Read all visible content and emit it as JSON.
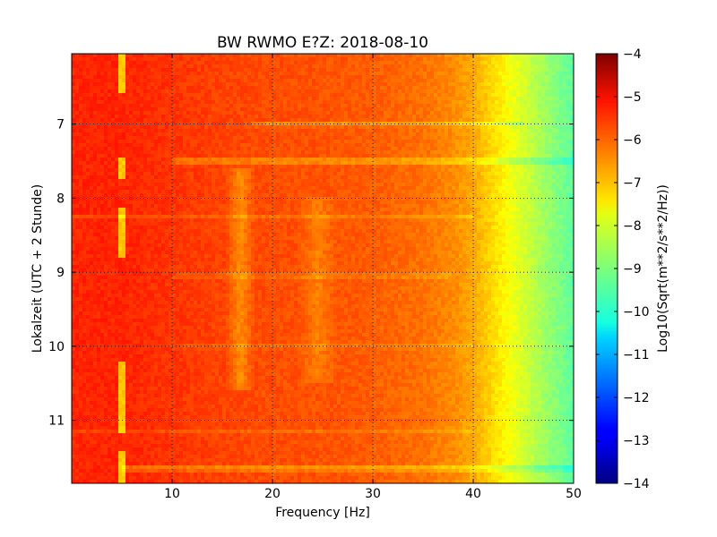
{
  "chart_data": {
    "type": "heatmap",
    "title": "BW RWMO E?Z: 2018-08-10",
    "xlabel": "Frequency [Hz]",
    "ylabel": "Lokalzeit (UTC + 2 Stunde)",
    "xlim": [
      0,
      50
    ],
    "ylim": [
      6.05,
      11.85
    ],
    "y_inverted": true,
    "x_ticks": [
      10,
      20,
      30,
      40,
      50
    ],
    "y_ticks": [
      7,
      8,
      9,
      10,
      11
    ],
    "grid": true,
    "colormap": "jet",
    "colorbar": {
      "label": "Log10(Sqrt(m**2/s**2/Hz))",
      "range": [
        -14,
        -4
      ],
      "ticks": [
        -4,
        -5,
        -6,
        -7,
        -8,
        -9,
        -10,
        -11,
        -12,
        -13,
        -14
      ]
    },
    "spectrum_profile": {
      "frequency_hz": [
        0,
        5,
        10,
        15,
        20,
        25,
        30,
        35,
        38,
        40,
        42,
        44,
        46,
        48,
        50
      ],
      "log10_amplitude": [
        -5.6,
        -5.6,
        -5.75,
        -5.9,
        -6.0,
        -6.05,
        -6.15,
        -6.35,
        -6.6,
        -6.9,
        -7.4,
        -7.9,
        -8.4,
        -8.9,
        -9.3
      ]
    },
    "features": [
      {
        "kind": "vertical_band",
        "frequency_hz": 16.8,
        "width_hz": 1.5,
        "t_start": 7.6,
        "t_end": 10.6,
        "delta": -0.7
      },
      {
        "kind": "vertical_band",
        "frequency_hz": 24.5,
        "width_hz": 2.0,
        "t_start": 8.0,
        "t_end": 10.5,
        "delta": -0.45
      },
      {
        "kind": "vertical_line",
        "frequency_hz": 5.1,
        "t_start": 6.05,
        "t_end": 6.6,
        "delta": -1.6
      },
      {
        "kind": "vertical_line",
        "frequency_hz": 5.1,
        "t_start": 7.45,
        "t_end": 7.75,
        "delta": -1.6
      },
      {
        "kind": "vertical_line",
        "frequency_hz": 5.1,
        "t_start": 8.15,
        "t_end": 8.8,
        "delta": -1.6
      },
      {
        "kind": "vertical_line",
        "frequency_hz": 5.1,
        "t_start": 10.2,
        "t_end": 11.15,
        "delta": -1.6
      },
      {
        "kind": "vertical_line",
        "frequency_hz": 5.1,
        "t_start": 11.4,
        "t_end": 11.85,
        "delta": -1.6
      },
      {
        "kind": "horizontal_band",
        "time": 7.0,
        "f_start": 18,
        "f_end": 45,
        "delta": -0.7
      },
      {
        "kind": "horizontal_band",
        "time": 7.5,
        "f_start": 10,
        "f_end": 50,
        "delta": -1.0
      },
      {
        "kind": "horizontal_band",
        "time": 8.25,
        "f_start": 0,
        "f_end": 40,
        "delta": -0.35
      },
      {
        "kind": "horizontal_band",
        "time": 9.05,
        "f_start": 10,
        "f_end": 38,
        "delta": -0.45
      },
      {
        "kind": "horizontal_band",
        "time": 10.0,
        "f_start": 10,
        "f_end": 40,
        "delta": -0.35
      },
      {
        "kind": "horizontal_band",
        "time": 11.15,
        "f_start": 0,
        "f_end": 40,
        "delta": -0.3
      },
      {
        "kind": "horizontal_band",
        "time": 11.65,
        "f_start": 5,
        "f_end": 50,
        "delta": -1.0
      }
    ]
  }
}
